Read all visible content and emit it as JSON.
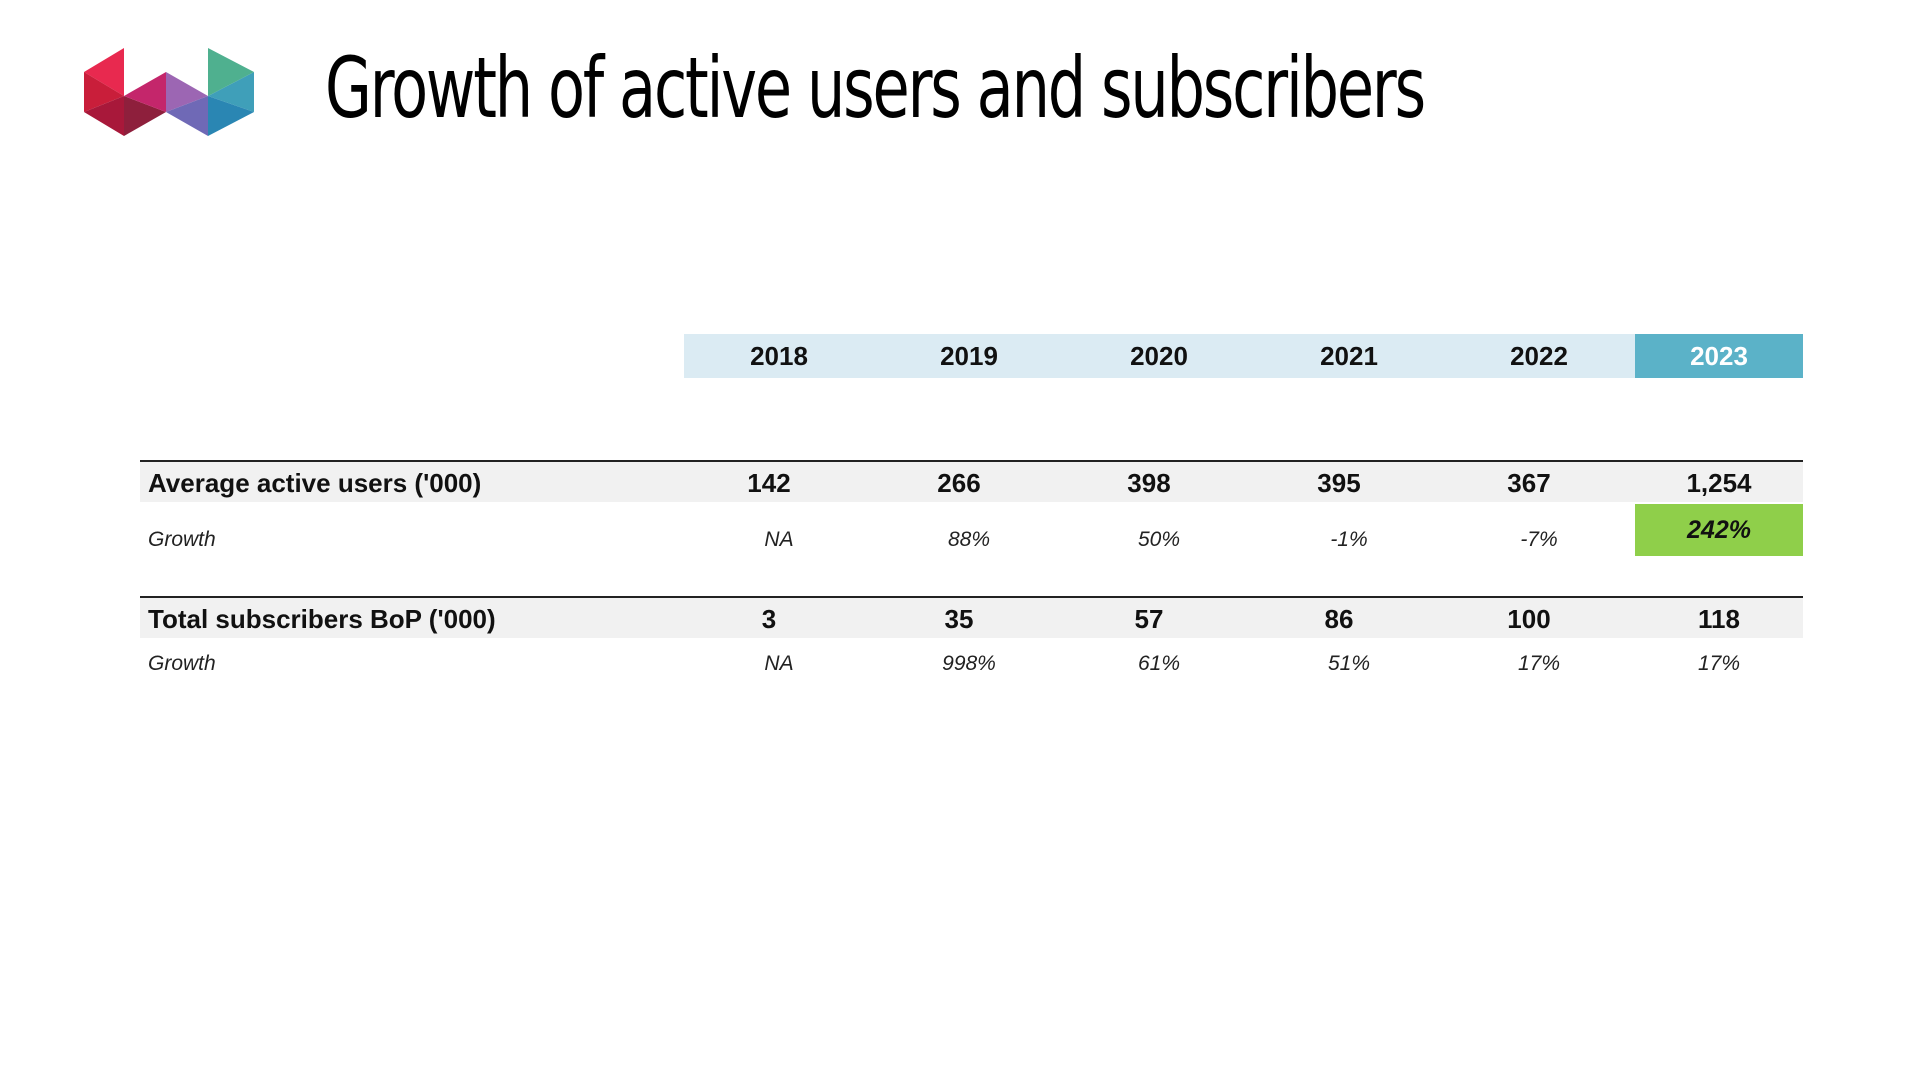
{
  "slide": {
    "title": "Growth of active users and subscribers",
    "logo": {
      "icon": "multicolor-triangles-logo",
      "colors": [
        "#e8294f",
        "#c4266b",
        "#9c66b3",
        "#5b9fc4",
        "#4fb08f"
      ]
    }
  },
  "table": {
    "years": [
      "2018",
      "2019",
      "2020",
      "2021",
      "2022",
      "2023"
    ],
    "highlight_year": "2023",
    "colors": {
      "header_band": "#dbebf3",
      "header_highlight": "#5bb2c8",
      "growth_highlight": "#8fcf4a",
      "row_band": "#f1f1f1"
    },
    "rows": [
      {
        "label": "Average active users ('000)",
        "values": [
          "142",
          "266",
          "398",
          "395",
          "367",
          "1,254"
        ],
        "growth_label": "Growth",
        "growth": [
          "NA",
          "88%",
          "50%",
          "-1%",
          "-7%",
          "242%"
        ]
      },
      {
        "label": "Total subscribers BoP ('000)",
        "values": [
          "3",
          "35",
          "57",
          "86",
          "100",
          "118"
        ],
        "growth_label": "Growth",
        "growth": [
          "NA",
          "998%",
          "61%",
          "51%",
          "17%",
          "17%"
        ]
      }
    ]
  }
}
